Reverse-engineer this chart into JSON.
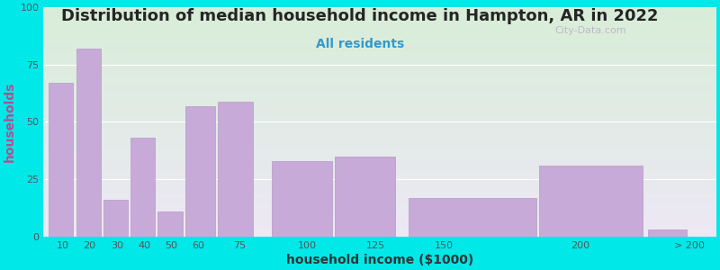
{
  "title": "Distribution of median household income in Hampton, AR in 2022",
  "subtitle": "All residents",
  "xlabel": "household income ($1000)",
  "ylabel": "households",
  "bar_labels": [
    "10",
    "20",
    "30",
    "40",
    "50",
    "60",
    "75",
    "100",
    "125",
    "150",
    "200",
    "> 200"
  ],
  "bar_values": [
    67,
    82,
    16,
    43,
    11,
    57,
    59,
    33,
    35,
    17,
    31,
    3
  ],
  "bar_color": "#c8aad8",
  "bar_edge_color": "#b898c8",
  "ylim": [
    0,
    100
  ],
  "yticks": [
    0,
    25,
    50,
    75,
    100
  ],
  "bg_outer": "#00e8e8",
  "bg_plot_top_left": "#d8eed8",
  "bg_plot_bottom_right": "#ede8f5",
  "title_fontsize": 13,
  "subtitle_fontsize": 10,
  "axis_label_fontsize": 10,
  "tick_fontsize": 8,
  "watermark_text": "City-Data.com",
  "watermark_color": "#b8b0c8",
  "tick_positions": [
    10,
    20,
    30,
    40,
    50,
    60,
    75,
    100,
    125,
    150,
    200,
    240
  ],
  "tick_labels_display": [
    "10",
    "20",
    "30",
    "40",
    "50",
    "60",
    "75",
    "100",
    "125",
    "150",
    "200",
    "> 200"
  ],
  "bar_left_edges": [
    5,
    15,
    25,
    35,
    45,
    55,
    67,
    87,
    110,
    137,
    185,
    225
  ],
  "bar_widths": [
    9,
    9,
    9,
    9,
    9,
    11,
    13,
    22,
    22,
    47,
    38,
    14
  ]
}
